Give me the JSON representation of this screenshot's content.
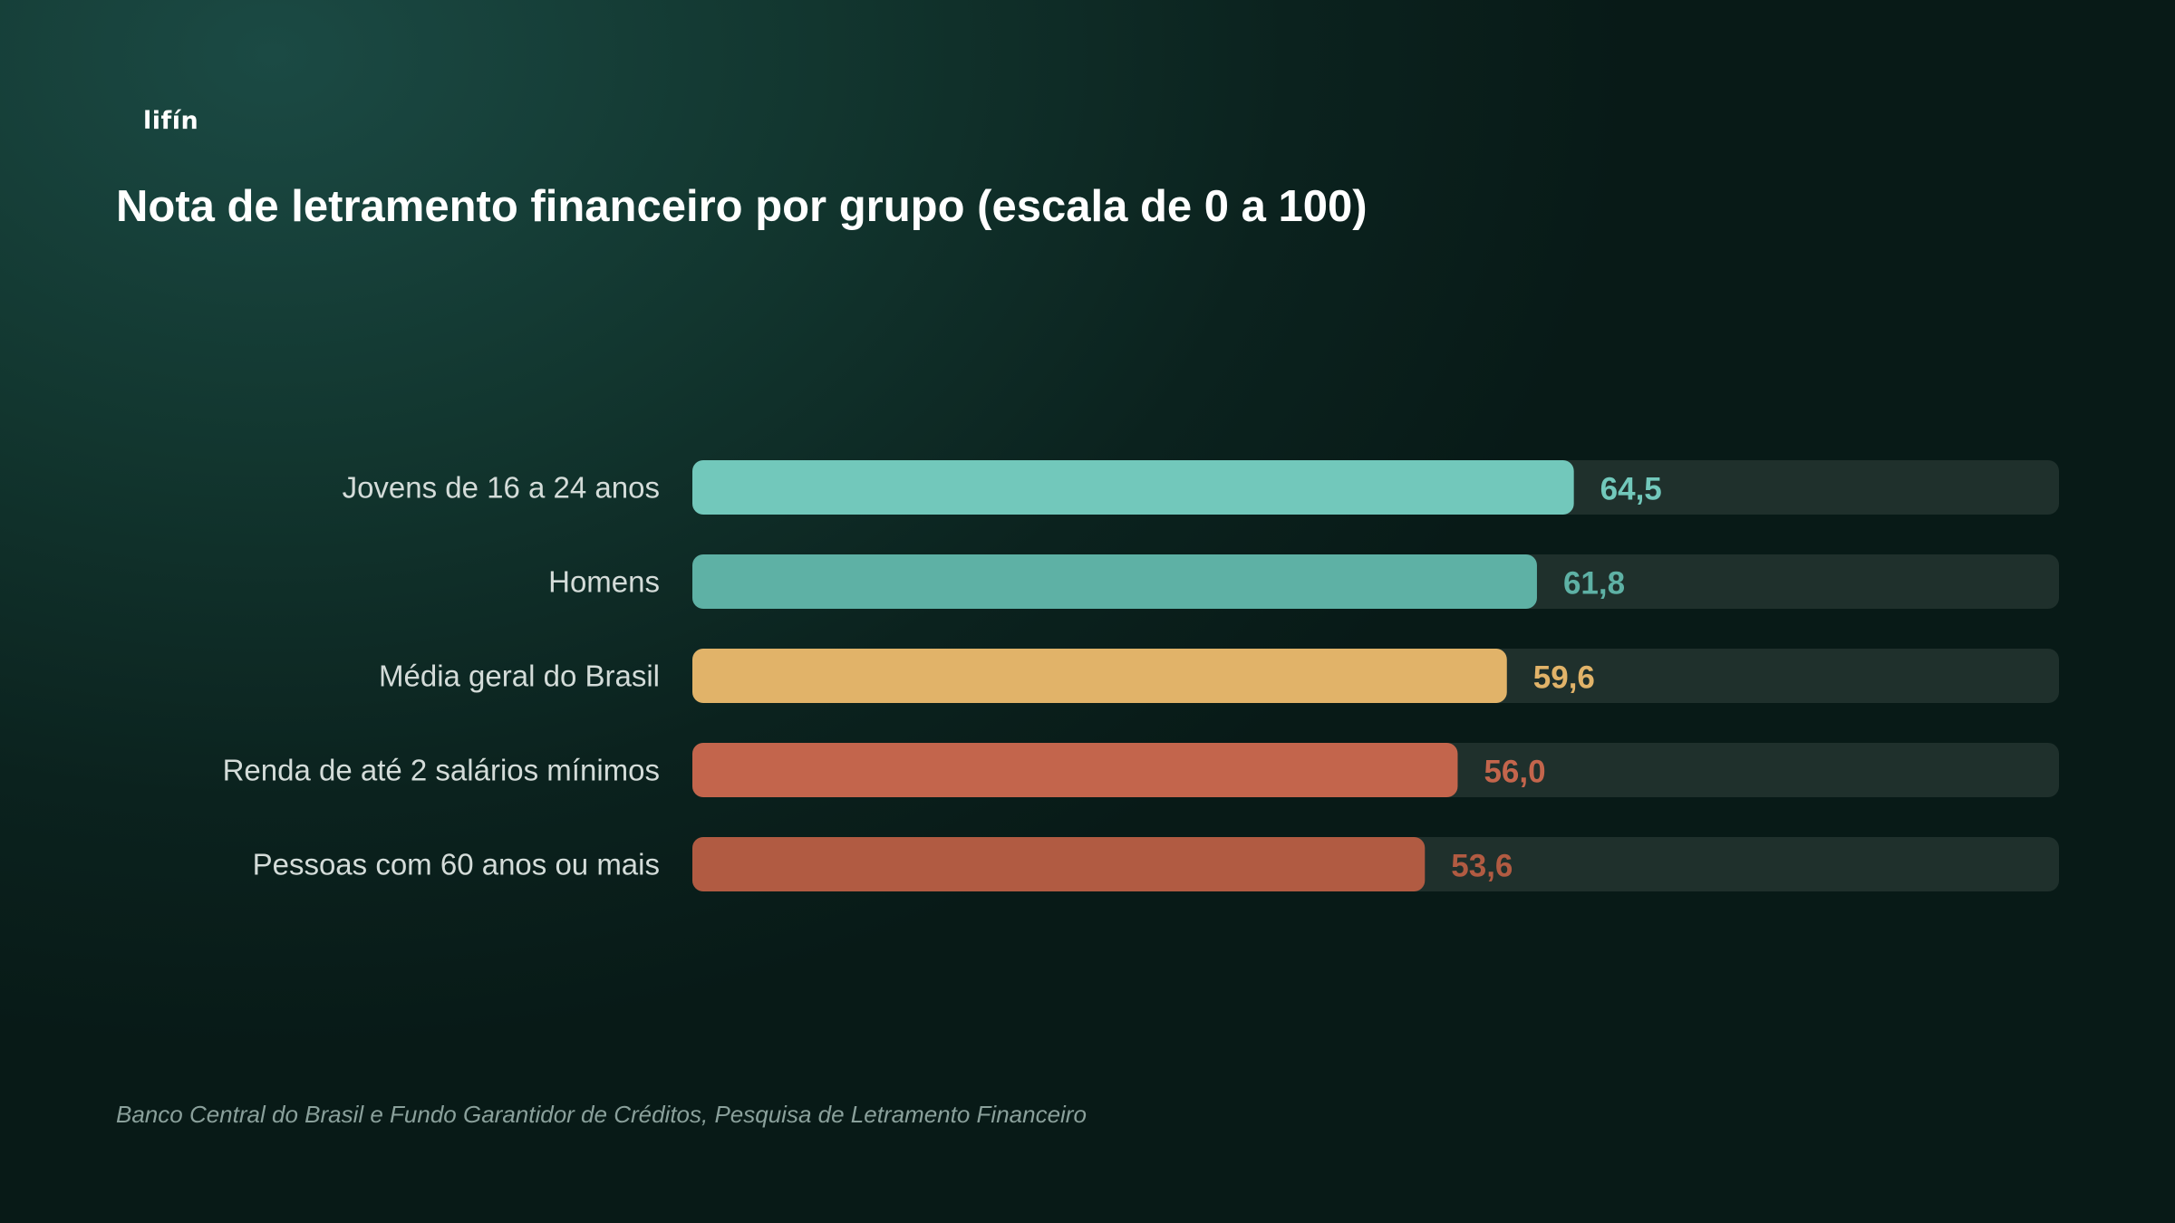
{
  "brand": {
    "logo_text": "lifín"
  },
  "source": "Banco Central do Brasil e Fundo Garantidor de Créditos, Pesquisa de Letramento Financeiro",
  "chart_data": {
    "type": "bar",
    "orientation": "horizontal",
    "title": "Nota de letramento financeiro por grupo (escala de 0 a 100)",
    "categories": [
      "Jovens de 16 a 24 anos",
      "Homens",
      "Média geral do Brasil",
      "Renda de até 2 salários mínimos",
      "Pessoas com 60 anos ou mais"
    ],
    "values": [
      64.5,
      61.8,
      59.6,
      56.0,
      53.6
    ],
    "value_labels": [
      "64,5",
      "61,8",
      "59,6",
      "56,0",
      "53,6"
    ],
    "colors": [
      "#72c8bb",
      "#5eb1a5",
      "#e1b369",
      "#c3654c",
      "#b15b42"
    ],
    "track_color": "#1f302c",
    "xlim": [
      0,
      100
    ],
    "grid": false,
    "legend": "none"
  }
}
